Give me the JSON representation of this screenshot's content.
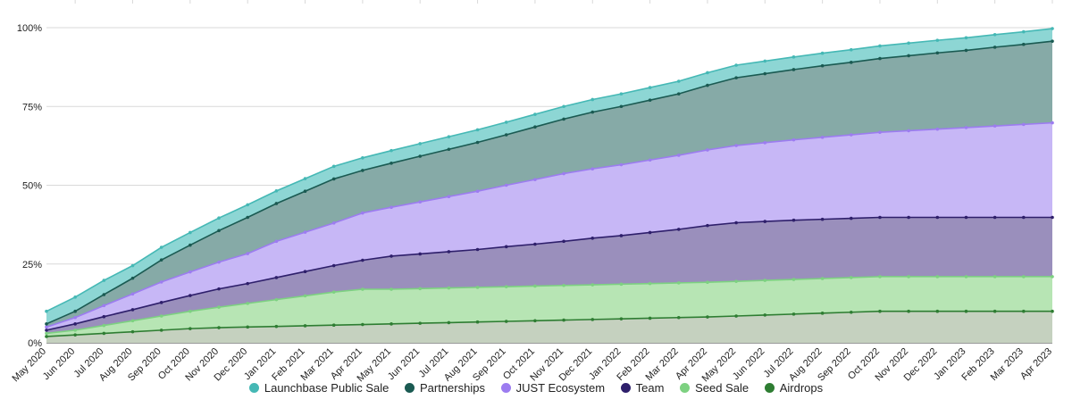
{
  "chart_data": {
    "type": "area",
    "stacked": true,
    "title": "",
    "xlabel": "",
    "ylabel": "",
    "ylim": [
      0,
      100
    ],
    "y_ticks": [
      "0%",
      "25%",
      "50%",
      "75%",
      "100%"
    ],
    "grid": true,
    "legend_position": "bottom",
    "categories": [
      "May 2020",
      "Jun 2020",
      "Jul 2020",
      "Aug 2020",
      "Sep 2020",
      "Oct 2020",
      "Nov 2020",
      "Dec 2020",
      "Jan 2021",
      "Feb 2021",
      "Mar 2021",
      "Apr 2021",
      "May 2021",
      "Jun 2021",
      "Jul 2021",
      "Aug 2021",
      "Sep 2021",
      "Oct 2021",
      "Nov 2021",
      "Dec 2021",
      "Jan 2022",
      "Feb 2022",
      "Mar 2022",
      "Apr 2022",
      "May 2022",
      "Jun 2022",
      "Jul 2022",
      "Aug 2022",
      "Sep 2022",
      "Oct 2022",
      "Nov 2022",
      "Dec 2022",
      "Jan 2023",
      "Feb 2023",
      "Mar 2023",
      "Apr 2023"
    ],
    "series": [
      {
        "name": "Airdrops",
        "color": "#2e7d32",
        "fill": "#c5d1bf",
        "values": [
          2.0,
          2.5,
          3.0,
          3.5,
          4.0,
          4.5,
          4.8,
          5.0,
          5.2,
          5.4,
          5.6,
          5.8,
          6.0,
          6.2,
          6.4,
          6.6,
          6.8,
          7.0,
          7.2,
          7.4,
          7.6,
          7.8,
          8.0,
          8.2,
          8.5,
          8.8,
          9.1,
          9.4,
          9.7,
          10.0,
          10.0,
          10.0,
          10.0,
          10.0,
          10.0,
          10.0
        ]
      },
      {
        "name": "Seed Sale",
        "color": "#7dd181",
        "fill": "#b7e5b4",
        "values": [
          1.0,
          1.5,
          2.5,
          3.5,
          4.5,
          5.5,
          6.5,
          7.5,
          8.5,
          9.5,
          10.5,
          11.2,
          11.0,
          11.0,
          11.0,
          11.0,
          11.0,
          11.0,
          11.0,
          11.0,
          11.0,
          11.0,
          11.0,
          11.0,
          11.0,
          11.0,
          11.0,
          11.0,
          11.0,
          11.0,
          11.0,
          11.0,
          11.0,
          11.0,
          11.0,
          11.0
        ]
      },
      {
        "name": "Team",
        "color": "#2e1f6b",
        "fill": "#9a8fbc",
        "values": [
          1.0,
          2.0,
          2.8,
          3.5,
          4.3,
          5.0,
          5.8,
          6.3,
          7.0,
          7.7,
          8.4,
          9.2,
          10.5,
          11.0,
          11.5,
          12.0,
          12.7,
          13.3,
          14.0,
          14.8,
          15.4,
          16.2,
          17.0,
          18.0,
          18.6,
          18.7,
          18.8,
          18.8,
          18.8,
          18.8,
          18.8,
          18.8,
          18.8,
          18.8,
          18.8,
          18.8
        ]
      },
      {
        "name": "JUST Ecosystem",
        "color": "#9c7cf0",
        "fill": "#c7b7f6",
        "values": [
          1.0,
          2.0,
          3.5,
          5.0,
          6.5,
          7.5,
          8.5,
          9.5,
          11.5,
          12.5,
          13.5,
          15.0,
          15.5,
          16.5,
          17.5,
          18.5,
          19.5,
          20.5,
          21.5,
          22.0,
          22.5,
          23.0,
          23.5,
          24.0,
          24.5,
          25.0,
          25.5,
          26.0,
          26.5,
          27.0,
          27.5,
          28.0,
          28.5,
          29.0,
          29.5,
          30.0
        ]
      },
      {
        "name": "Partnerships",
        "color": "#1a5a52",
        "fill": "#86aaa7",
        "values": [
          1.0,
          2.0,
          3.5,
          5.0,
          7.0,
          8.5,
          10.0,
          11.5,
          12.0,
          13.0,
          14.0,
          13.5,
          14.0,
          14.5,
          15.0,
          15.5,
          16.0,
          16.7,
          17.3,
          18.0,
          18.5,
          19.0,
          19.5,
          20.5,
          21.5,
          21.9,
          22.3,
          22.7,
          23.0,
          23.4,
          23.8,
          24.2,
          24.5,
          25.0,
          25.4,
          25.9
        ]
      },
      {
        "name": "Launchbase Public Sale",
        "color": "#45b8b5",
        "fill": "#8dd6d4",
        "values": [
          4.0,
          4.5,
          4.5,
          4.0,
          4.0,
          4.0,
          4.0,
          4.0,
          4.0,
          4.0,
          4.0,
          4.0,
          4.0,
          4.0,
          4.0,
          4.0,
          4.0,
          4.0,
          4.0,
          4.0,
          4.0,
          4.0,
          4.0,
          4.0,
          4.0,
          4.0,
          4.0,
          4.0,
          4.0,
          4.0,
          4.0,
          4.0,
          4.0,
          4.0,
          4.0,
          4.0
        ]
      }
    ]
  },
  "legend": {
    "items": [
      {
        "label": "Launchbase Public Sale",
        "color": "#45b8b5"
      },
      {
        "label": "Partnerships",
        "color": "#1a5a52"
      },
      {
        "label": "JUST Ecosystem",
        "color": "#9c7cf0"
      },
      {
        "label": "Team",
        "color": "#2e1f6b"
      },
      {
        "label": "Seed Sale",
        "color": "#7dd181"
      },
      {
        "label": "Airdrops",
        "color": "#2e7d32"
      }
    ]
  }
}
